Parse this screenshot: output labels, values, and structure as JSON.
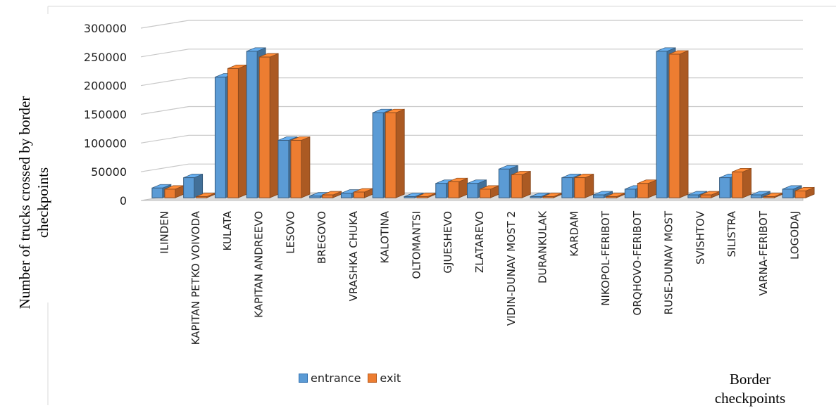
{
  "chart_data": {
    "type": "bar",
    "title": "",
    "ylabel": "Number of trucks crossed by border checkpoints",
    "xlabel": "Border checkpoints",
    "ylim": [
      0,
      300000
    ],
    "yticks": [
      0,
      50000,
      100000,
      150000,
      200000,
      250000,
      300000
    ],
    "ytick_labels": [
      "0",
      "50000",
      "100000",
      "150000",
      "200000",
      "250000",
      "300000"
    ],
    "grid": true,
    "legend_position": "bottom",
    "categories": [
      "ILINDEN",
      "KAPITAN PETKO VOIVODA",
      "KULATA",
      "KAPITAN ANDREEVO",
      "LESOVO",
      "BREGOVO",
      "VRASHKA CHUKA",
      "KALOTINA",
      "OLTOMANTSI",
      "GJUESHEVO",
      "ZLATAREVO",
      "VIDIN-DUNAV MOST 2",
      "DURANKULAK",
      "KARDAM",
      "NIKOPOL-FERIBOT",
      "ORQHOVO-FERIBOT",
      "RUSE-DUNAV MOST",
      "SVISHTOV",
      "SILISTRA",
      "VARNA-FERIBOT",
      "LOGODAJ"
    ],
    "series": [
      {
        "name": "entrance",
        "color": "#5B9BD5",
        "values": [
          17000,
          35000,
          210000,
          255000,
          100000,
          3000,
          8000,
          148000,
          2000,
          25000,
          25000,
          50000,
          2000,
          35000,
          5000,
          15000,
          255000,
          5000,
          35000,
          5000,
          15000
        ]
      },
      {
        "name": "exit",
        "color": "#ED7D31",
        "values": [
          15000,
          2000,
          225000,
          245000,
          100000,
          5000,
          10000,
          148000,
          2000,
          28000,
          15000,
          40000,
          2000,
          35000,
          2000,
          25000,
          250000,
          5000,
          45000,
          2000,
          12000
        ]
      }
    ]
  }
}
